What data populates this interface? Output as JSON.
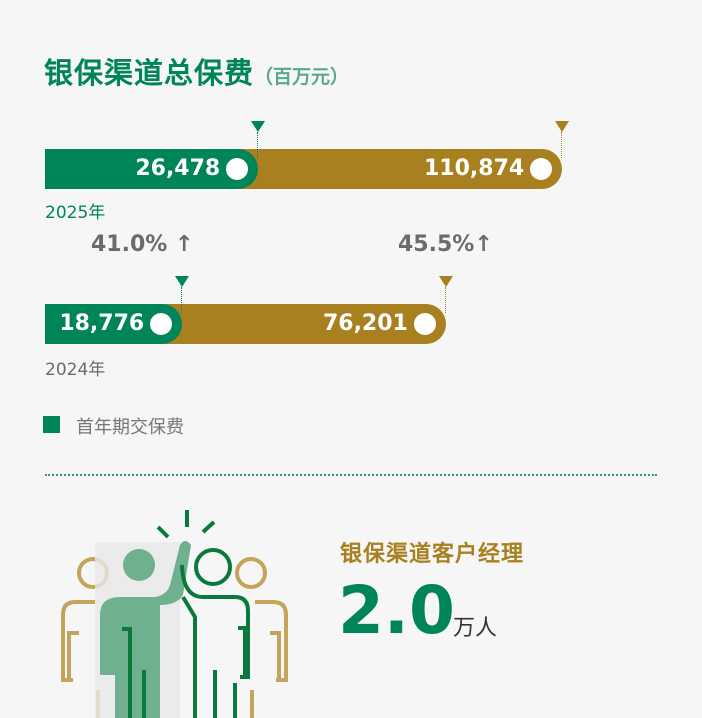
{
  "header": {
    "title": "银保渠道总保费",
    "unit": "（百万元）"
  },
  "chart_data": {
    "type": "bar",
    "orientation": "horizontal",
    "stacked": false,
    "title": "银保渠道总保费",
    "unit": "（百万元）",
    "categories": [
      "2025年",
      "2024年"
    ],
    "series": [
      {
        "name": "首年期交保费",
        "values": [
          26478,
          18776
        ],
        "labels": [
          "26,478",
          "18,776"
        ],
        "color": "#00845a"
      },
      {
        "values": [
          110874,
          76201
        ],
        "labels": [
          "110,874",
          "76,201"
        ],
        "color": "#a8801f"
      }
    ],
    "growth": [
      {
        "label": "41.0%",
        "direction": "up"
      },
      {
        "label": "45.5%",
        "direction": "up"
      }
    ],
    "legend": {
      "label": "首年期交保费",
      "placement": "bottom-left"
    }
  },
  "manager": {
    "title": "银保渠道客户经理",
    "value": "2.0",
    "unit": "万人"
  },
  "icons": {
    "people": "people-high-five-icon",
    "arrow": "arrow-up-icon"
  }
}
